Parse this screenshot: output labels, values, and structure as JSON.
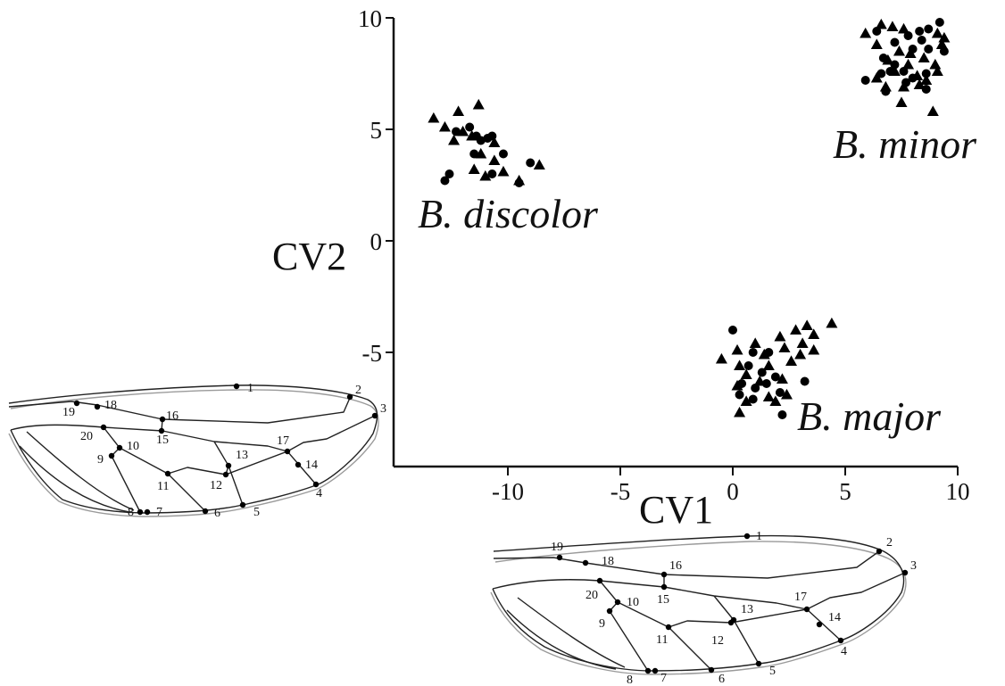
{
  "chart_data": {
    "type": "scatter",
    "xlabel": "CV1",
    "ylabel": "CV2",
    "xlim": [
      -15.5,
      10
    ],
    "ylim": [
      -10,
      10
    ],
    "x_ticks": [
      -10,
      -5,
      0,
      5,
      10
    ],
    "y_ticks": [
      10,
      5,
      0,
      -5
    ],
    "marker_shapes": [
      "triangle",
      "circle"
    ],
    "series": [
      {
        "marker": "triangle",
        "points": [
          [
            -13.3,
            5.5
          ],
          [
            -12.8,
            5.1
          ],
          [
            -12.2,
            5.8
          ],
          [
            -11.3,
            6.1
          ],
          [
            -12.0,
            4.9
          ],
          [
            -11.6,
            4.7
          ],
          [
            -10.6,
            4.4
          ],
          [
            -12.4,
            4.5
          ],
          [
            -11.2,
            3.9
          ],
          [
            -10.6,
            3.6
          ],
          [
            -10.2,
            3.1
          ],
          [
            -9.5,
            2.7
          ],
          [
            -8.6,
            3.4
          ],
          [
            -11.0,
            2.9
          ],
          [
            -11.5,
            3.2
          ],
          [
            5.9,
            9.3
          ],
          [
            6.6,
            9.7
          ],
          [
            7.1,
            9.6
          ],
          [
            7.6,
            9.5
          ],
          [
            9.1,
            9.3
          ],
          [
            9.4,
            9.1
          ],
          [
            6.4,
            8.8
          ],
          [
            7.4,
            8.5
          ],
          [
            9.3,
            8.8
          ],
          [
            6.9,
            8.1
          ],
          [
            7.8,
            7.9
          ],
          [
            8.5,
            8.2
          ],
          [
            9.0,
            7.9
          ],
          [
            7.2,
            7.6
          ],
          [
            8.2,
            7.4
          ],
          [
            6.4,
            7.3
          ],
          [
            8.6,
            7.2
          ],
          [
            9.1,
            7.6
          ],
          [
            7.6,
            6.9
          ],
          [
            8.3,
            7.0
          ],
          [
            7.5,
            6.2
          ],
          [
            8.9,
            5.8
          ],
          [
            6.8,
            6.9
          ],
          [
            7.9,
            8.4
          ],
          [
            -0.5,
            -5.3
          ],
          [
            0.2,
            -4.9
          ],
          [
            1.0,
            -4.6
          ],
          [
            2.1,
            -4.3
          ],
          [
            2.8,
            -4.0
          ],
          [
            3.3,
            -3.8
          ],
          [
            3.6,
            -4.2
          ],
          [
            4.4,
            -3.7
          ],
          [
            0.3,
            -5.6
          ],
          [
            1.4,
            -5.1
          ],
          [
            2.3,
            -4.8
          ],
          [
            3.1,
            -4.6
          ],
          [
            3.6,
            -4.9
          ],
          [
            0.6,
            -6.0
          ],
          [
            1.6,
            -5.6
          ],
          [
            2.6,
            -5.4
          ],
          [
            0.2,
            -6.5
          ],
          [
            1.2,
            -6.3
          ],
          [
            2.2,
            -6.2
          ],
          [
            0.6,
            -7.2
          ],
          [
            1.6,
            -7.0
          ],
          [
            2.4,
            -6.9
          ],
          [
            0.3,
            -7.7
          ],
          [
            1.9,
            -7.2
          ],
          [
            3.0,
            -5.1
          ]
        ]
      },
      {
        "marker": "circle",
        "points": [
          [
            -12.3,
            4.9
          ],
          [
            -11.7,
            5.1
          ],
          [
            -11.4,
            4.7
          ],
          [
            -11.2,
            4.5
          ],
          [
            -10.9,
            4.6
          ],
          [
            -10.7,
            4.7
          ],
          [
            -11.5,
            3.9
          ],
          [
            -10.2,
            3.9
          ],
          [
            -12.6,
            3.0
          ],
          [
            -12.8,
            2.7
          ],
          [
            -9.5,
            2.6
          ],
          [
            -9.0,
            3.5
          ],
          [
            -10.7,
            3.0
          ],
          [
            6.4,
            9.4
          ],
          [
            7.2,
            8.9
          ],
          [
            7.8,
            9.2
          ],
          [
            8.3,
            9.4
          ],
          [
            8.7,
            9.5
          ],
          [
            9.2,
            9.8
          ],
          [
            8.4,
            9.0
          ],
          [
            8.0,
            8.6
          ],
          [
            8.7,
            8.6
          ],
          [
            9.4,
            8.5
          ],
          [
            6.7,
            8.2
          ],
          [
            7.2,
            7.9
          ],
          [
            7.6,
            7.6
          ],
          [
            8.0,
            7.3
          ],
          [
            8.6,
            7.5
          ],
          [
            6.6,
            7.5
          ],
          [
            7.0,
            7.6
          ],
          [
            5.9,
            7.2
          ],
          [
            6.8,
            6.7
          ],
          [
            8.6,
            6.8
          ],
          [
            7.7,
            7.1
          ],
          [
            0.0,
            -4.0
          ],
          [
            0.9,
            -5.0
          ],
          [
            1.6,
            -5.0
          ],
          [
            0.7,
            -5.6
          ],
          [
            1.3,
            -5.9
          ],
          [
            1.9,
            -6.1
          ],
          [
            0.4,
            -6.4
          ],
          [
            1.0,
            -6.6
          ],
          [
            1.5,
            -6.4
          ],
          [
            0.3,
            -6.9
          ],
          [
            2.1,
            -6.8
          ],
          [
            2.2,
            -7.8
          ],
          [
            3.2,
            -6.3
          ],
          [
            0.9,
            -7.1
          ]
        ]
      }
    ],
    "annotations": [
      "B. discolor",
      "B. minor",
      "B. major"
    ]
  },
  "wing_diagrams": {
    "landmarks": [
      "1",
      "2",
      "3",
      "4",
      "5",
      "6",
      "7",
      "8",
      "9",
      "10",
      "11",
      "12",
      "13",
      "14",
      "15",
      "16",
      "17",
      "18",
      "19",
      "20"
    ]
  }
}
